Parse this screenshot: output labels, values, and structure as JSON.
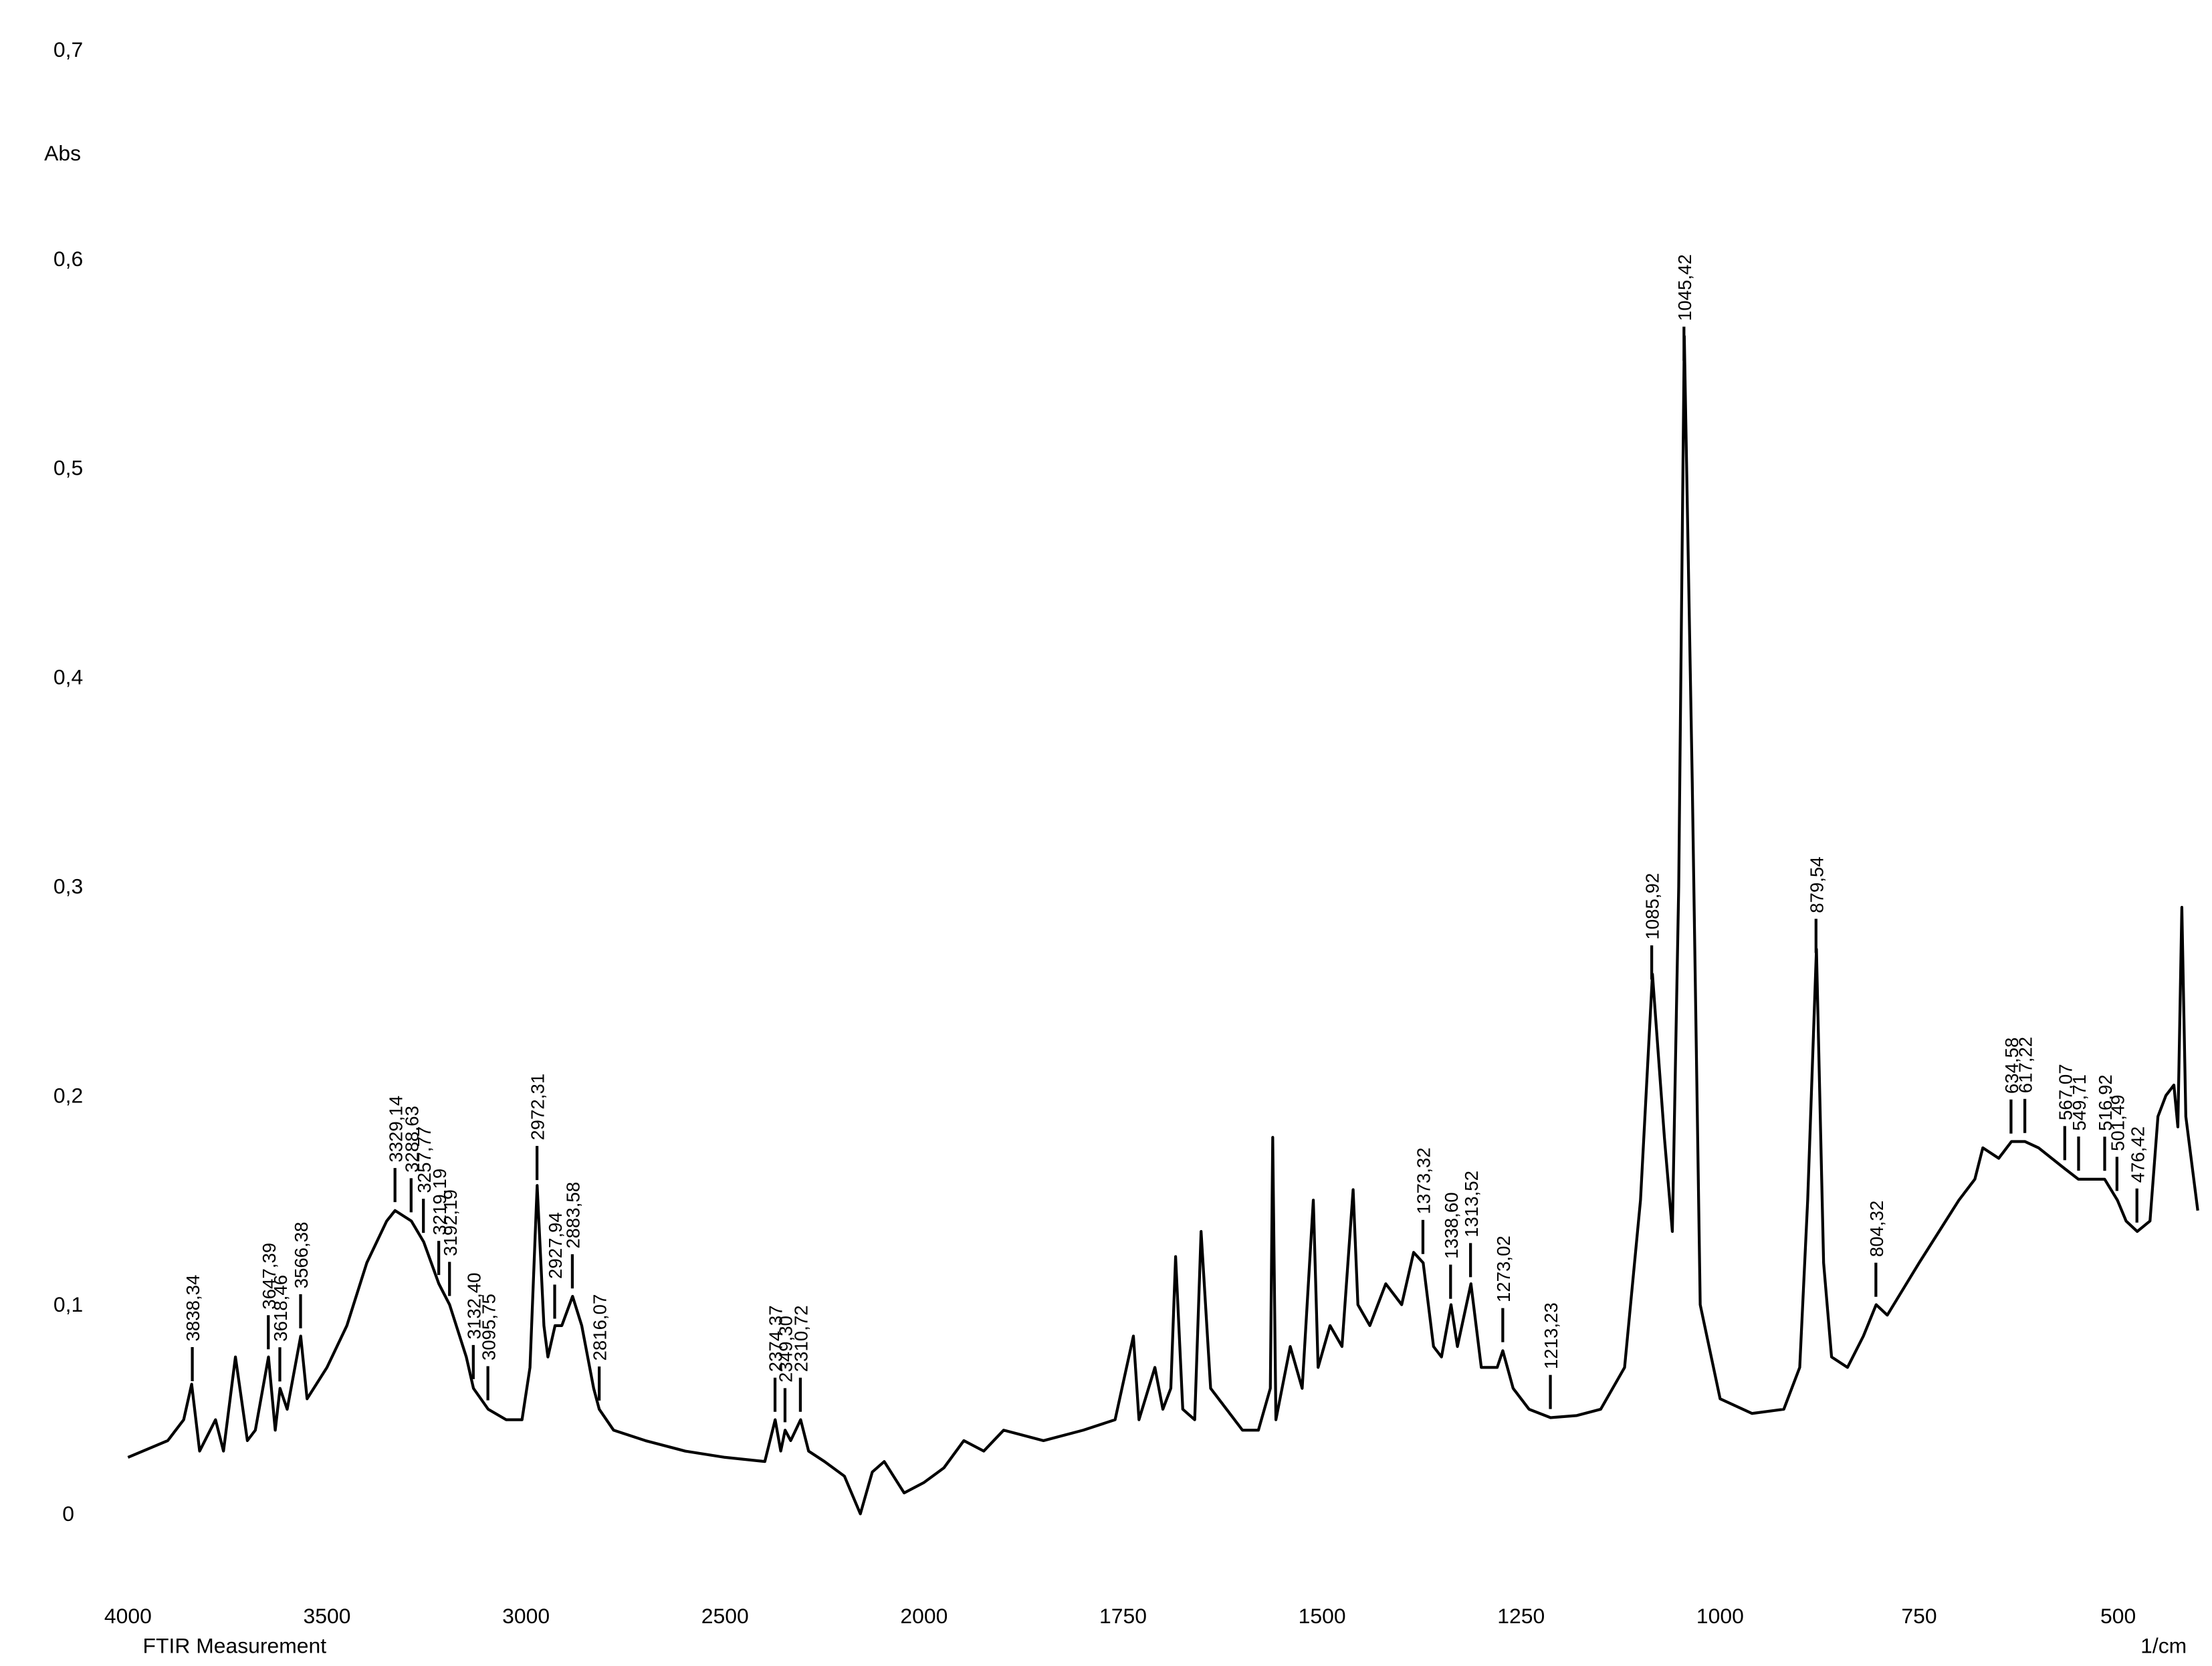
{
  "chart_data": {
    "type": "line",
    "x_label": "1/cm",
    "y_label": "Abs",
    "caption": "FTIR Measurement",
    "color": "#000000",
    "xlim": [
      4000,
      400
    ],
    "xticks": [
      4000,
      3500,
      3000,
      2500,
      2000,
      1750,
      1500,
      1250,
      1000,
      750,
      500
    ],
    "ylim": [
      -0.04,
      0.7
    ],
    "yticks": [
      0,
      {
        "value": 0.1,
        "label": "0,1"
      },
      {
        "value": 0.2,
        "label": "0,2"
      },
      {
        "value": 0.3,
        "label": "0,3"
      },
      {
        "value": 0.4,
        "label": "0,4"
      },
      {
        "value": 0.5,
        "label": "0,5"
      },
      {
        "value": 0.6,
        "label": "0,6"
      },
      {
        "value": 0.7,
        "label": "0,7"
      }
    ],
    "x": [
      4000,
      3900,
      3860,
      3840,
      3820,
      3780,
      3760,
      3730,
      3700,
      3680,
      3647,
      3630,
      3618,
      3600,
      3566,
      3550,
      3500,
      3450,
      3400,
      3350,
      3329,
      3288,
      3257,
      3219,
      3192,
      3150,
      3132,
      3095,
      3050,
      3010,
      2990,
      2972,
      2955,
      2945,
      2927,
      2910,
      2883,
      2860,
      2830,
      2816,
      2780,
      2700,
      2600,
      2500,
      2400,
      2374,
      2360,
      2349,
      2335,
      2310,
      2290,
      2250,
      2200,
      2160,
      2130,
      2100,
      2050,
      2000,
      1975,
      1950,
      1925,
      1900,
      1850,
      1800,
      1760,
      1737,
      1730,
      1710,
      1700,
      1690,
      1684,
      1675,
      1660,
      1652,
      1640,
      1620,
      1600,
      1580,
      1565,
      1562,
      1558,
      1540,
      1525,
      1511,
      1505,
      1490,
      1475,
      1461,
      1455,
      1440,
      1420,
      1400,
      1385,
      1373,
      1360,
      1350,
      1338,
      1330,
      1313,
      1300,
      1280,
      1273,
      1260,
      1240,
      1213,
      1180,
      1150,
      1120,
      1100,
      1085,
      1070,
      1060,
      1052,
      1045,
      1035,
      1025,
      1000,
      960,
      920,
      900,
      890,
      879,
      870,
      860,
      840,
      820,
      804,
      790,
      750,
      700,
      680,
      670,
      650,
      634,
      617,
      600,
      567,
      550,
      517,
      501,
      490,
      476,
      460,
      450,
      440,
      430,
      425,
      420,
      415,
      405,
      400
    ],
    "values": [
      0.027,
      0.035,
      0.045,
      0.062,
      0.03,
      0.045,
      0.03,
      0.075,
      0.035,
      0.04,
      0.075,
      0.04,
      0.06,
      0.05,
      0.085,
      0.055,
      0.07,
      0.09,
      0.12,
      0.14,
      0.145,
      0.14,
      0.13,
      0.11,
      0.1,
      0.075,
      0.06,
      0.05,
      0.045,
      0.045,
      0.07,
      0.157,
      0.09,
      0.075,
      0.09,
      0.09,
      0.104,
      0.09,
      0.06,
      0.05,
      0.04,
      0.035,
      0.03,
      0.027,
      0.025,
      0.045,
      0.03,
      0.04,
      0.035,
      0.045,
      0.03,
      0.025,
      0.018,
      0.0,
      0.02,
      0.025,
      0.01,
      0.015,
      0.022,
      0.035,
      0.03,
      0.04,
      0.035,
      0.04,
      0.045,
      0.085,
      0.045,
      0.07,
      0.05,
      0.06,
      0.123,
      0.05,
      0.045,
      0.135,
      0.06,
      0.05,
      0.04,
      0.04,
      0.06,
      0.18,
      0.045,
      0.08,
      0.06,
      0.15,
      0.07,
      0.09,
      0.08,
      0.155,
      0.1,
      0.09,
      0.11,
      0.1,
      0.125,
      0.12,
      0.08,
      0.075,
      0.1,
      0.08,
      0.11,
      0.07,
      0.07,
      0.078,
      0.06,
      0.05,
      0.046,
      0.047,
      0.05,
      0.07,
      0.15,
      0.258,
      0.18,
      0.135,
      0.3,
      0.563,
      0.35,
      0.1,
      0.055,
      0.048,
      0.05,
      0.07,
      0.15,
      0.27,
      0.12,
      0.075,
      0.07,
      0.085,
      0.1,
      0.095,
      0.12,
      0.15,
      0.16,
      0.175,
      0.17,
      0.178,
      0.178,
      0.175,
      0.165,
      0.16,
      0.16,
      0.15,
      0.14,
      0.135,
      0.14,
      0.19,
      0.2,
      0.205,
      0.185,
      0.29,
      0.19,
      0.16,
      0.145
    ],
    "peaks": [
      {
        "x": 3838.34,
        "label": "3838,34"
      },
      {
        "x": 3647.39,
        "label": "3647,39"
      },
      {
        "x": 3618.46,
        "label": "3618,46"
      },
      {
        "x": 3566.38,
        "label": "3566,38"
      },
      {
        "x": 3329.14,
        "label": "3329,14"
      },
      {
        "x": 3288.63,
        "label": "3288,63"
      },
      {
        "x": 3257.77,
        "label": "3257,77"
      },
      {
        "x": 3219.19,
        "label": "3219,19"
      },
      {
        "x": 3192.19,
        "label": "3192,19"
      },
      {
        "x": 3132.4,
        "label": "3132,40"
      },
      {
        "x": 3095.75,
        "label": "3095,75"
      },
      {
        "x": 2972.31,
        "label": "2972,31"
      },
      {
        "x": 2927.94,
        "label": "2927,94"
      },
      {
        "x": 2883.58,
        "label": "2883,58"
      },
      {
        "x": 2816.07,
        "label": "2816,07"
      },
      {
        "x": 2374.37,
        "label": "2374,37"
      },
      {
        "x": 2349.3,
        "label": "2349,30"
      },
      {
        "x": 2310.72,
        "label": "2310,72"
      },
      {
        "x": 1373.32,
        "label": "1373,32"
      },
      {
        "x": 1338.6,
        "label": "1338,60"
      },
      {
        "x": 1313.52,
        "label": "1313,52"
      },
      {
        "x": 1273.02,
        "label": "1273,02"
      },
      {
        "x": 1213.23,
        "label": "1213,23"
      },
      {
        "x": 1085.92,
        "label": "1085,92"
      },
      {
        "x": 1045.42,
        "label": "1045,42"
      },
      {
        "x": 879.54,
        "label": "879,54"
      },
      {
        "x": 804.32,
        "label": "804,32"
      },
      {
        "x": 634.58,
        "label": "634,58"
      },
      {
        "x": 617.22,
        "label": "617,22"
      },
      {
        "x": 567.07,
        "label": "567,07"
      },
      {
        "x": 549.71,
        "label": "549,71"
      },
      {
        "x": 516.92,
        "label": "516,92"
      },
      {
        "x": 501.49,
        "label": "501,49"
      },
      {
        "x": 476.42,
        "label": "476,42"
      }
    ]
  }
}
